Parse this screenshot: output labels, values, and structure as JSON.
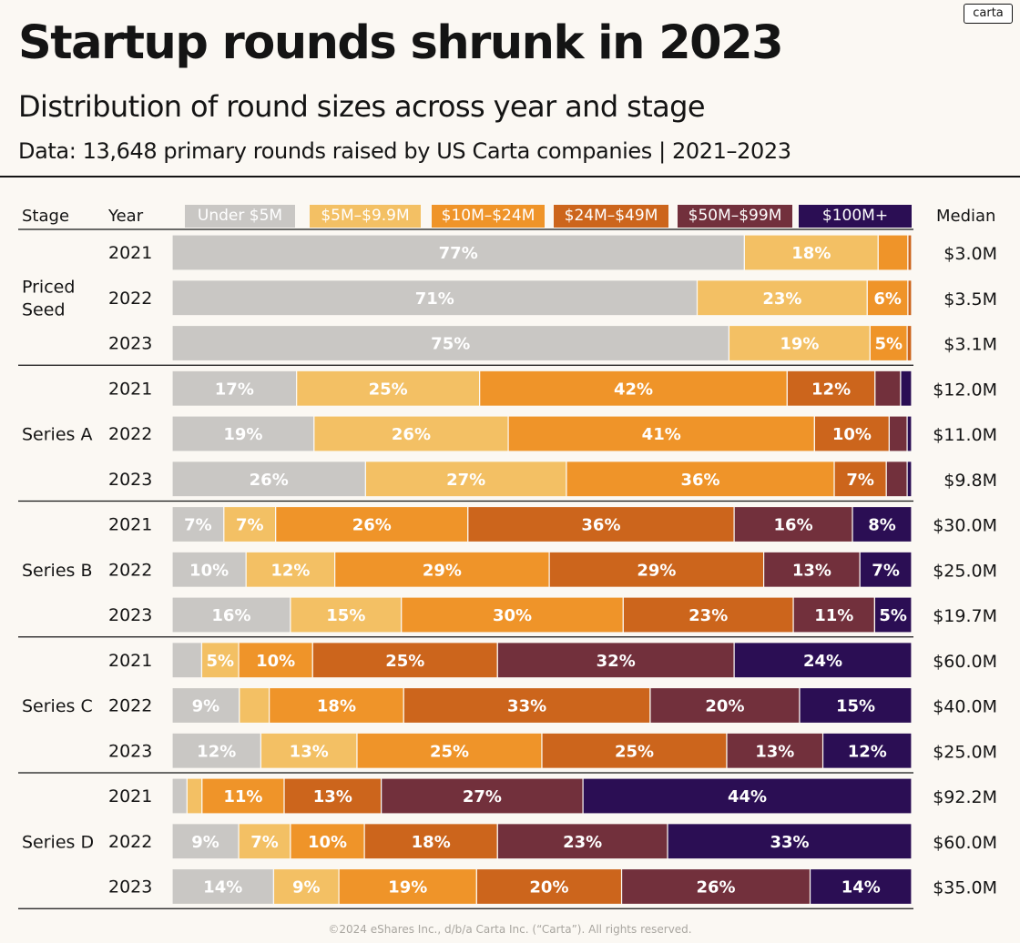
{
  "header": {
    "title": "Startup rounds shrunk in 2023",
    "subtitle": "Distribution of round sizes across year and stage",
    "dataline": "Data: 13,648 primary rounds raised by US Carta companies | 2021–2023",
    "logo": "carta"
  },
  "columns": {
    "stage": "Stage",
    "year": "Year",
    "median": "Median"
  },
  "footer": "©2024 eShares Inc., d/b/a Carta Inc. (“Carta”). All rights reserved.",
  "chart_data": {
    "type": "bar",
    "orientation": "horizontal-stacked-100",
    "title": "Startup rounds shrunk in 2023",
    "subtitle": "Distribution of round sizes across year and stage",
    "legend_placement": "top",
    "series": [
      {
        "name": "Under $5M",
        "color": "#c9c7c4"
      },
      {
        "name": "$5M–$9.9M",
        "color": "#f3c064"
      },
      {
        "name": "$10M–$24M",
        "color": "#ef9429"
      },
      {
        "name": "$24M–$49M",
        "color": "#cc651c"
      },
      {
        "name": "$50M–$99M",
        "color": "#72303c"
      },
      {
        "name": "$100M+",
        "color": "#2b0e54"
      }
    ],
    "stages": [
      {
        "stage": "Priced Seed",
        "rows": [
          {
            "year": "2021",
            "values": [
              77,
              18,
              4,
              0.5,
              0,
              0
            ],
            "labels": [
              "77%",
              "18%",
              "",
              "",
              "",
              ""
            ],
            "median": "$3.0M"
          },
          {
            "year": "2022",
            "values": [
              71,
              23,
              5.5,
              0.5,
              0,
              0
            ],
            "labels": [
              "71%",
              "23%",
              "6%",
              "",
              "",
              ""
            ],
            "median": "$3.5M"
          },
          {
            "year": "2023",
            "values": [
              75,
              19,
              5,
              0.6,
              0,
              0
            ],
            "labels": [
              "75%",
              "19%",
              "5%",
              "",
              "",
              ""
            ],
            "median": "$3.1M"
          }
        ]
      },
      {
        "stage": "Series A",
        "rows": [
          {
            "year": "2021",
            "values": [
              17,
              25,
              42,
              12,
              3.5,
              1.5
            ],
            "labels": [
              "17%",
              "25%",
              "42%",
              "12%",
              "",
              ""
            ],
            "median": "$12.0M"
          },
          {
            "year": "2022",
            "values": [
              19,
              26,
              41,
              10,
              2.4,
              0.6
            ],
            "labels": [
              "19%",
              "26%",
              "41%",
              "10%",
              "",
              ""
            ],
            "median": "$11.0M"
          },
          {
            "year": "2023",
            "values": [
              26,
              27,
              36,
              7,
              2.8,
              0.6
            ],
            "labels": [
              "26%",
              "27%",
              "36%",
              "7%",
              "",
              ""
            ],
            "median": "$9.8M"
          }
        ]
      },
      {
        "stage": "Series B",
        "rows": [
          {
            "year": "2021",
            "values": [
              7,
              7,
              26,
              36,
              16,
              8
            ],
            "labels": [
              "7%",
              "7%",
              "26%",
              "36%",
              "16%",
              "8%"
            ],
            "median": "$30.0M"
          },
          {
            "year": "2022",
            "values": [
              10,
              12,
              29,
              29,
              13,
              7
            ],
            "labels": [
              "10%",
              "12%",
              "29%",
              "29%",
              "13%",
              "7%"
            ],
            "median": "$25.0M"
          },
          {
            "year": "2023",
            "values": [
              16,
              15,
              30,
              23,
              11,
              5
            ],
            "labels": [
              "16%",
              "15%",
              "30%",
              "23%",
              "11%",
              "5%"
            ],
            "median": "$19.7M"
          }
        ]
      },
      {
        "stage": "Series C",
        "rows": [
          {
            "year": "2021",
            "values": [
              4,
              5,
              10,
              25,
              32,
              24
            ],
            "labels": [
              "",
              "5%",
              "10%",
              "25%",
              "32%",
              "24%"
            ],
            "median": "$60.0M"
          },
          {
            "year": "2022",
            "values": [
              9,
              4,
              18,
              33,
              20,
              15
            ],
            "labels": [
              "9%",
              "",
              "18%",
              "33%",
              "20%",
              "15%"
            ],
            "median": "$40.0M"
          },
          {
            "year": "2023",
            "values": [
              12,
              13,
              25,
              25,
              13,
              12
            ],
            "labels": [
              "12%",
              "13%",
              "25%",
              "25%",
              "13%",
              "12%"
            ],
            "median": "$25.0M"
          }
        ]
      },
      {
        "stage": "Series D",
        "rows": [
          {
            "year": "2021",
            "values": [
              2,
              2,
              11,
              13,
              27,
              44
            ],
            "labels": [
              "",
              "",
              "11%",
              "13%",
              "27%",
              "44%"
            ],
            "median": "$92.2M"
          },
          {
            "year": "2022",
            "values": [
              9,
              7,
              10,
              18,
              23,
              33
            ],
            "labels": [
              "9%",
              "7%",
              "10%",
              "18%",
              "23%",
              "33%"
            ],
            "median": "$60.0M"
          },
          {
            "year": "2023",
            "values": [
              14,
              9,
              19,
              20,
              26,
              14
            ],
            "labels": [
              "14%",
              "9%",
              "19%",
              "20%",
              "26%",
              "14%"
            ],
            "median": "$35.0M"
          }
        ]
      }
    ]
  }
}
